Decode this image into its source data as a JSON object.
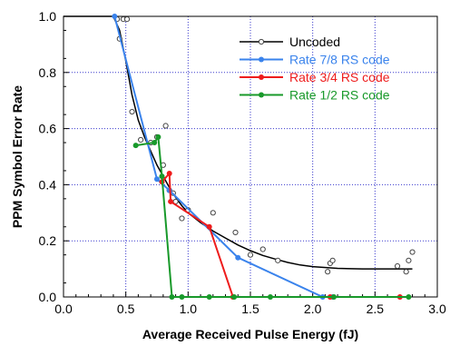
{
  "chart_data": {
    "type": "line",
    "xlabel": "Average Received Pulse Energy (fJ)",
    "ylabel": "PPM Symbol Error Rate",
    "xlim": [
      0,
      3
    ],
    "ylim": [
      0,
      1
    ],
    "x_ticks": [
      "0.0",
      "0.5",
      "1.0",
      "1.5",
      "2.0",
      "2.5",
      "3.0"
    ],
    "y_ticks": [
      "0.0",
      "0.2",
      "0.4",
      "0.6",
      "0.8",
      "1.0"
    ],
    "grid": true,
    "legend_position": "top-right",
    "series": [
      {
        "name": "Uncoded",
        "color": "#000000",
        "marker": "open-circle",
        "fit_curve": [
          [
            0.0,
            1.0
          ],
          [
            0.4,
            1.0
          ],
          [
            0.45,
            0.95
          ],
          [
            0.5,
            0.84
          ],
          [
            0.55,
            0.72
          ],
          [
            0.6,
            0.63
          ],
          [
            0.65,
            0.57
          ],
          [
            0.7,
            0.52
          ],
          [
            0.75,
            0.47
          ],
          [
            0.8,
            0.43
          ],
          [
            0.85,
            0.39
          ],
          [
            0.9,
            0.355
          ],
          [
            0.95,
            0.325
          ],
          [
            1.0,
            0.3
          ],
          [
            1.1,
            0.265
          ],
          [
            1.2,
            0.235
          ],
          [
            1.3,
            0.21
          ],
          [
            1.4,
            0.185
          ],
          [
            1.5,
            0.165
          ],
          [
            1.6,
            0.148
          ],
          [
            1.7,
            0.135
          ],
          [
            1.8,
            0.123
          ],
          [
            1.9,
            0.114
          ],
          [
            2.0,
            0.108
          ],
          [
            2.2,
            0.102
          ],
          [
            2.4,
            0.1
          ],
          [
            2.6,
            0.1
          ],
          [
            2.8,
            0.1
          ]
        ],
        "points": [
          [
            0.43,
            0.99
          ],
          [
            0.45,
            0.92
          ],
          [
            0.48,
            0.99
          ],
          [
            0.51,
            0.99
          ],
          [
            0.55,
            0.66
          ],
          [
            0.62,
            0.56
          ],
          [
            0.7,
            0.55
          ],
          [
            0.75,
            0.57
          ],
          [
            0.8,
            0.47
          ],
          [
            0.82,
            0.61
          ],
          [
            0.85,
            0.38
          ],
          [
            0.88,
            0.37
          ],
          [
            0.9,
            0.34
          ],
          [
            0.95,
            0.28
          ],
          [
            1.0,
            0.31
          ],
          [
            1.2,
            0.3
          ],
          [
            1.38,
            0.23
          ],
          [
            1.5,
            0.15
          ],
          [
            1.6,
            0.17
          ],
          [
            1.72,
            0.13
          ],
          [
            2.12,
            0.09
          ],
          [
            2.14,
            0.12
          ],
          [
            2.16,
            0.13
          ],
          [
            2.68,
            0.11
          ],
          [
            2.75,
            0.09
          ],
          [
            2.77,
            0.13
          ],
          [
            2.8,
            0.16
          ]
        ]
      },
      {
        "name": "Rate 7/8 RS code",
        "color": "#3a83ec",
        "marker": "filled-circle",
        "points": [
          [
            0.41,
            1.0
          ],
          [
            0.75,
            0.42
          ],
          [
            0.85,
            0.38
          ],
          [
            1.4,
            0.14
          ],
          [
            2.08,
            0.0
          ],
          [
            2.16,
            0.0
          ]
        ]
      },
      {
        "name": "Rate 3/4 RS code",
        "color": "#ee1c1c",
        "marker": "filled-circle",
        "points": [
          [
            0.79,
            0.41
          ],
          [
            0.85,
            0.44
          ],
          [
            0.86,
            0.34
          ],
          [
            1.17,
            0.25
          ],
          [
            1.36,
            0.0
          ],
          [
            2.14,
            0.0
          ],
          [
            2.7,
            0.0
          ]
        ]
      },
      {
        "name": "Rate 1/2 RS code",
        "color": "#18992a",
        "marker": "filled-circle",
        "points": [
          [
            0.58,
            0.54
          ],
          [
            0.73,
            0.55
          ],
          [
            0.76,
            0.57
          ],
          [
            0.79,
            0.43
          ],
          [
            0.87,
            0.0
          ],
          [
            0.95,
            0.0
          ],
          [
            1.17,
            0.0
          ],
          [
            1.37,
            0.0
          ],
          [
            1.66,
            0.0
          ],
          [
            2.17,
            0.0
          ],
          [
            2.77,
            0.0
          ]
        ]
      }
    ]
  }
}
